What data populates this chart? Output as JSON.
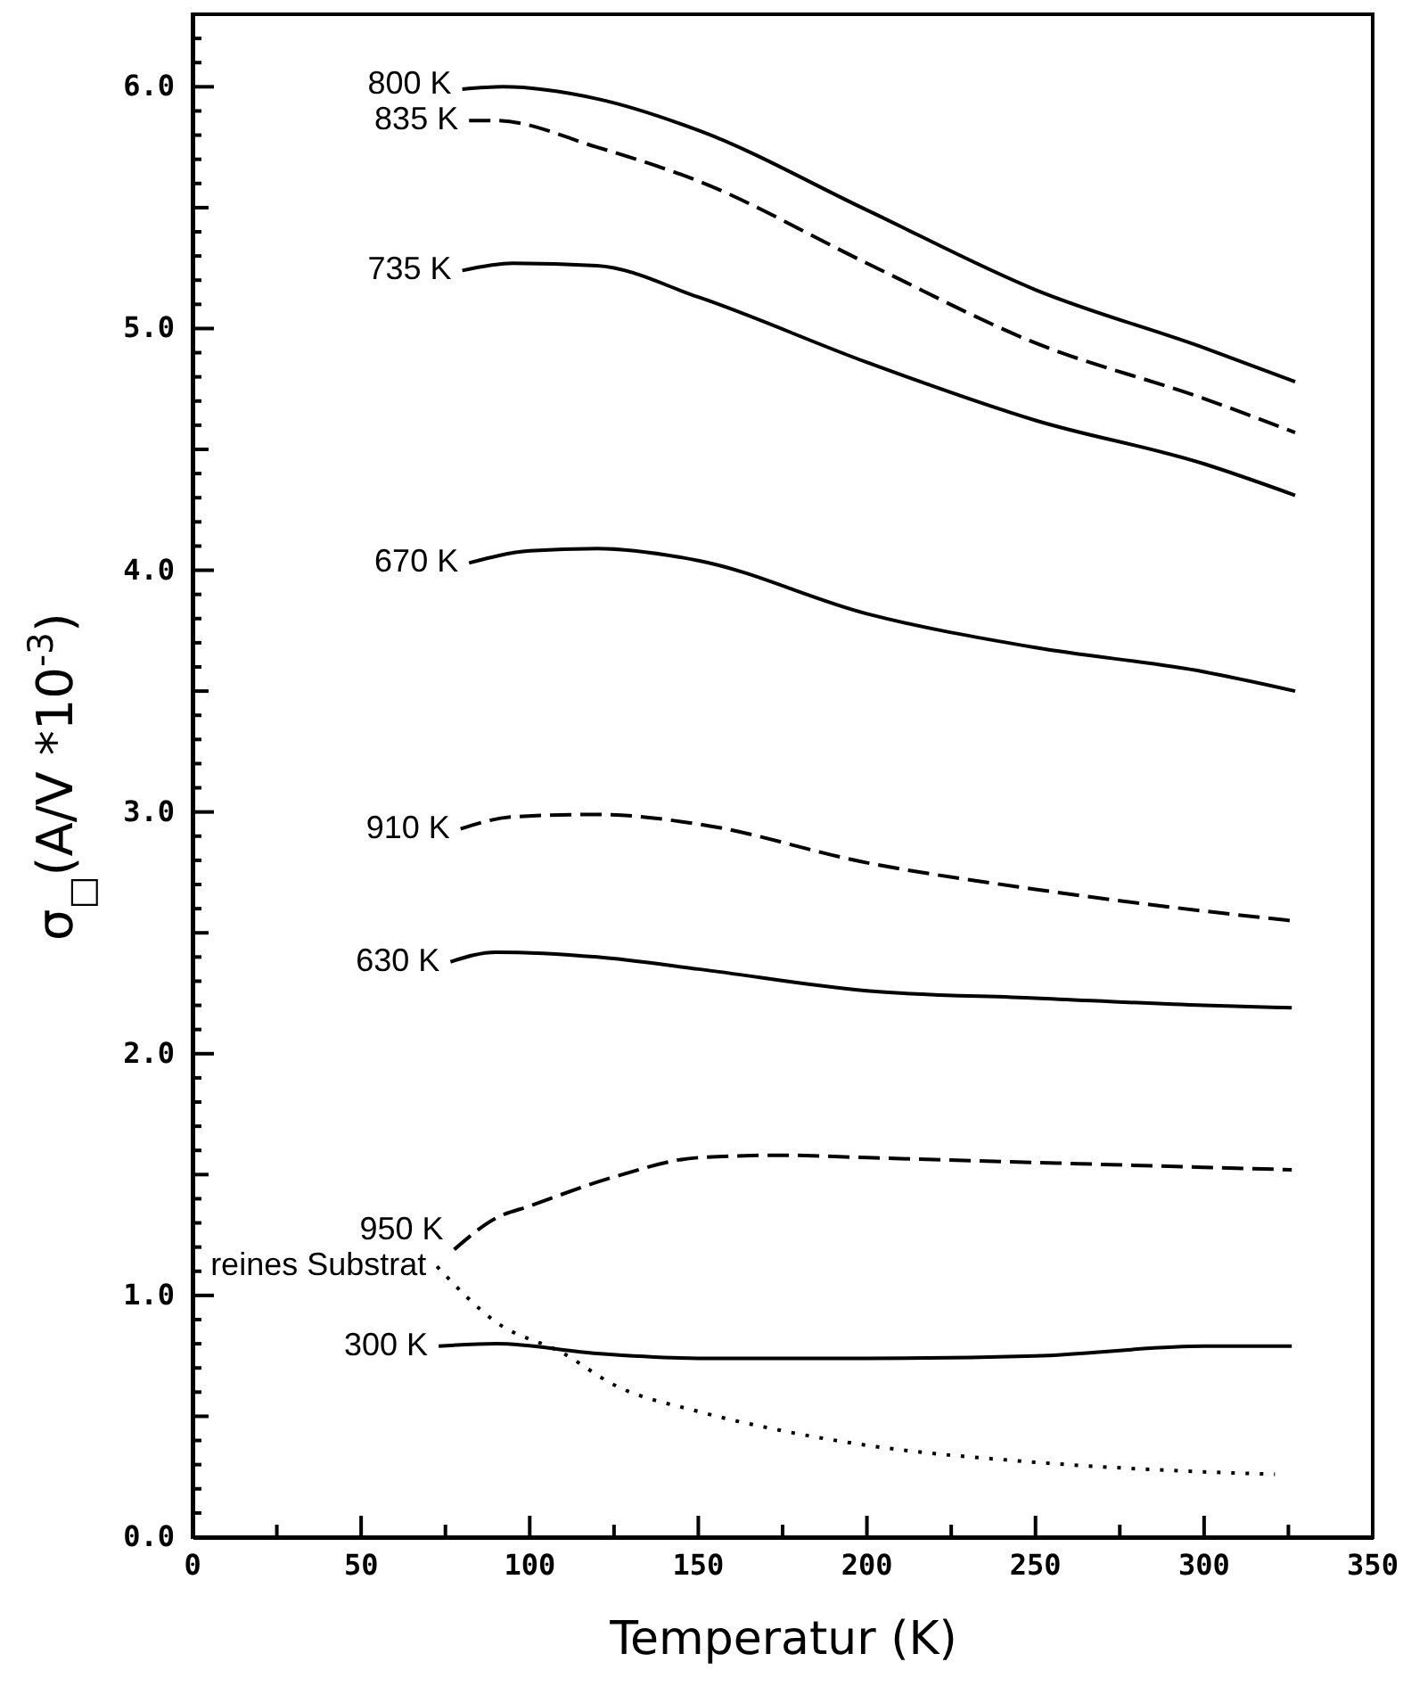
{
  "chart_data": {
    "type": "line",
    "xlabel": "Temperatur (K)",
    "ylabel": "σ$_{□}$(A/V *10$^{-3}$)",
    "xlim": [
      0,
      350
    ],
    "ylim": [
      0,
      6.3
    ],
    "xticks": [
      0,
      {
        "value": 25,
        "label": null
      },
      50,
      {
        "value": 75,
        "label": null
      },
      100,
      {
        "value": 125,
        "label": null
      },
      150,
      {
        "value": 175,
        "label": null
      },
      200,
      {
        "value": 225,
        "label": null
      },
      250,
      {
        "value": 275,
        "label": null
      },
      300,
      {
        "value": 325,
        "label": null
      },
      350
    ],
    "yticks": [
      {
        "value": 0,
        "label": "0.0"
      },
      {
        "value": 0.1,
        "label": null
      },
      {
        "value": 0.2,
        "label": null
      },
      {
        "value": 0.3,
        "label": null
      },
      {
        "value": 0.4,
        "label": null
      },
      {
        "value": 0.5,
        "label": null
      },
      {
        "value": 0.6,
        "label": null
      },
      {
        "value": 0.7,
        "label": null
      },
      {
        "value": 0.8,
        "label": null
      },
      {
        "value": 0.9,
        "label": null
      },
      {
        "value": 1,
        "label": "1.0"
      },
      {
        "value": 1.1,
        "label": null
      },
      {
        "value": 1.2,
        "label": null
      },
      {
        "value": 1.3,
        "label": null
      },
      {
        "value": 1.4,
        "label": null
      },
      {
        "value": 1.5,
        "label": null
      },
      {
        "value": 1.6,
        "label": null
      },
      {
        "value": 1.7,
        "label": null
      },
      {
        "value": 1.8,
        "label": null
      },
      {
        "value": 1.9,
        "label": null
      },
      {
        "value": 2,
        "label": "2.0"
      },
      {
        "value": 2.1,
        "label": null
      },
      {
        "value": 2.2,
        "label": null
      },
      {
        "value": 2.3,
        "label": null
      },
      {
        "value": 2.4,
        "label": null
      },
      {
        "value": 2.5,
        "label": null
      },
      {
        "value": 2.6,
        "label": null
      },
      {
        "value": 2.7,
        "label": null
      },
      {
        "value": 2.8,
        "label": null
      },
      {
        "value": 2.9,
        "label": null
      },
      {
        "value": 3,
        "label": "3.0"
      },
      {
        "value": 3.1,
        "label": null
      },
      {
        "value": 3.2,
        "label": null
      },
      {
        "value": 3.3,
        "label": null
      },
      {
        "value": 3.4,
        "label": null
      },
      {
        "value": 3.5,
        "label": null
      },
      {
        "value": 3.6,
        "label": null
      },
      {
        "value": 3.7,
        "label": null
      },
      {
        "value": 3.8,
        "label": null
      },
      {
        "value": 3.9,
        "label": null
      },
      {
        "value": 4,
        "label": "4.0"
      },
      {
        "value": 4.1,
        "label": null
      },
      {
        "value": 4.2,
        "label": null
      },
      {
        "value": 4.3,
        "label": null
      },
      {
        "value": 4.4,
        "label": null
      },
      {
        "value": 4.5,
        "label": null
      },
      {
        "value": 4.6,
        "label": null
      },
      {
        "value": 4.7,
        "label": null
      },
      {
        "value": 4.8,
        "label": null
      },
      {
        "value": 4.9,
        "label": null
      },
      {
        "value": 5,
        "label": "5.0"
      },
      {
        "value": 5.1,
        "label": null
      },
      {
        "value": 5.2,
        "label": null
      },
      {
        "value": 5.3,
        "label": null
      },
      {
        "value": 5.4,
        "label": null
      },
      {
        "value": 5.5,
        "label": null
      },
      {
        "value": 5.6,
        "label": null
      },
      {
        "value": 5.7,
        "label": null
      },
      {
        "value": 5.8,
        "label": null
      },
      {
        "value": 5.9,
        "label": null
      },
      {
        "value": 6,
        "label": "6.0"
      },
      {
        "value": 6.1,
        "label": null
      },
      {
        "value": 6.2,
        "label": null
      }
    ],
    "grid": false,
    "series": [
      {
        "name": "800 K",
        "color": "#000000",
        "line_style": "solid",
        "x": [
          80,
          92,
          120,
          150,
          200,
          250,
          300,
          327
        ],
        "values": [
          5.99,
          6.0,
          5.95,
          5.82,
          5.49,
          5.16,
          4.92,
          4.78
        ]
      },
      {
        "name": "835 K",
        "color": "#000000",
        "line_style": "dashed",
        "x": [
          82,
          90,
          120,
          150,
          200,
          250,
          300,
          327
        ],
        "values": [
          5.86,
          5.86,
          5.75,
          5.61,
          5.27,
          4.94,
          4.71,
          4.57
        ]
      },
      {
        "name": "735 K",
        "color": "#000000",
        "line_style": "solid",
        "x": [
          80,
          95,
          120,
          150,
          200,
          250,
          300,
          327
        ],
        "values": [
          5.24,
          5.27,
          5.26,
          5.13,
          4.86,
          4.62,
          4.44,
          4.31
        ]
      },
      {
        "name": "670 K",
        "color": "#000000",
        "line_style": "solid",
        "x": [
          82,
          100,
          120,
          150,
          200,
          250,
          300,
          327
        ],
        "values": [
          4.03,
          4.08,
          4.09,
          4.04,
          3.82,
          3.68,
          3.58,
          3.5
        ]
      },
      {
        "name": "910 K",
        "color": "#000000",
        "line_style": "dashed",
        "x": [
          79.5,
          95,
          120,
          150,
          200,
          250,
          300,
          326
        ],
        "values": [
          2.93,
          2.98,
          2.99,
          2.95,
          2.79,
          2.68,
          2.59,
          2.55
        ]
      },
      {
        "name": "630 K",
        "color": "#000000",
        "line_style": "solid",
        "x": [
          76.5,
          90,
          120,
          150,
          200,
          250,
          300,
          326
        ],
        "values": [
          2.38,
          2.42,
          2.4,
          2.35,
          2.26,
          2.23,
          2.2,
          2.19
        ]
      },
      {
        "name": "950 K",
        "color": "#000000",
        "line_style": "dashed",
        "x": [
          77.6,
          90,
          100,
          125,
          150,
          175,
          200,
          250,
          300,
          326
        ],
        "values": [
          1.19,
          1.32,
          1.37,
          1.49,
          1.57,
          1.58,
          1.57,
          1.55,
          1.53,
          1.52
        ]
      },
      {
        "name": "reines Substrat",
        "color": "#000000",
        "line_style": "dotted",
        "x": [
          72.5,
          90,
          110,
          125,
          150,
          175,
          200,
          250,
          300,
          321
        ],
        "values": [
          1.12,
          0.89,
          0.76,
          0.63,
          0.52,
          0.44,
          0.38,
          0.31,
          0.27,
          0.26
        ]
      },
      {
        "name": "300 K",
        "color": "#000000",
        "line_style": "solid",
        "x": [
          73,
          90,
          120,
          150,
          200,
          250,
          300,
          326
        ],
        "values": [
          0.79,
          0.8,
          0.76,
          0.74,
          0.74,
          0.75,
          0.79,
          0.79
        ]
      }
    ]
  }
}
